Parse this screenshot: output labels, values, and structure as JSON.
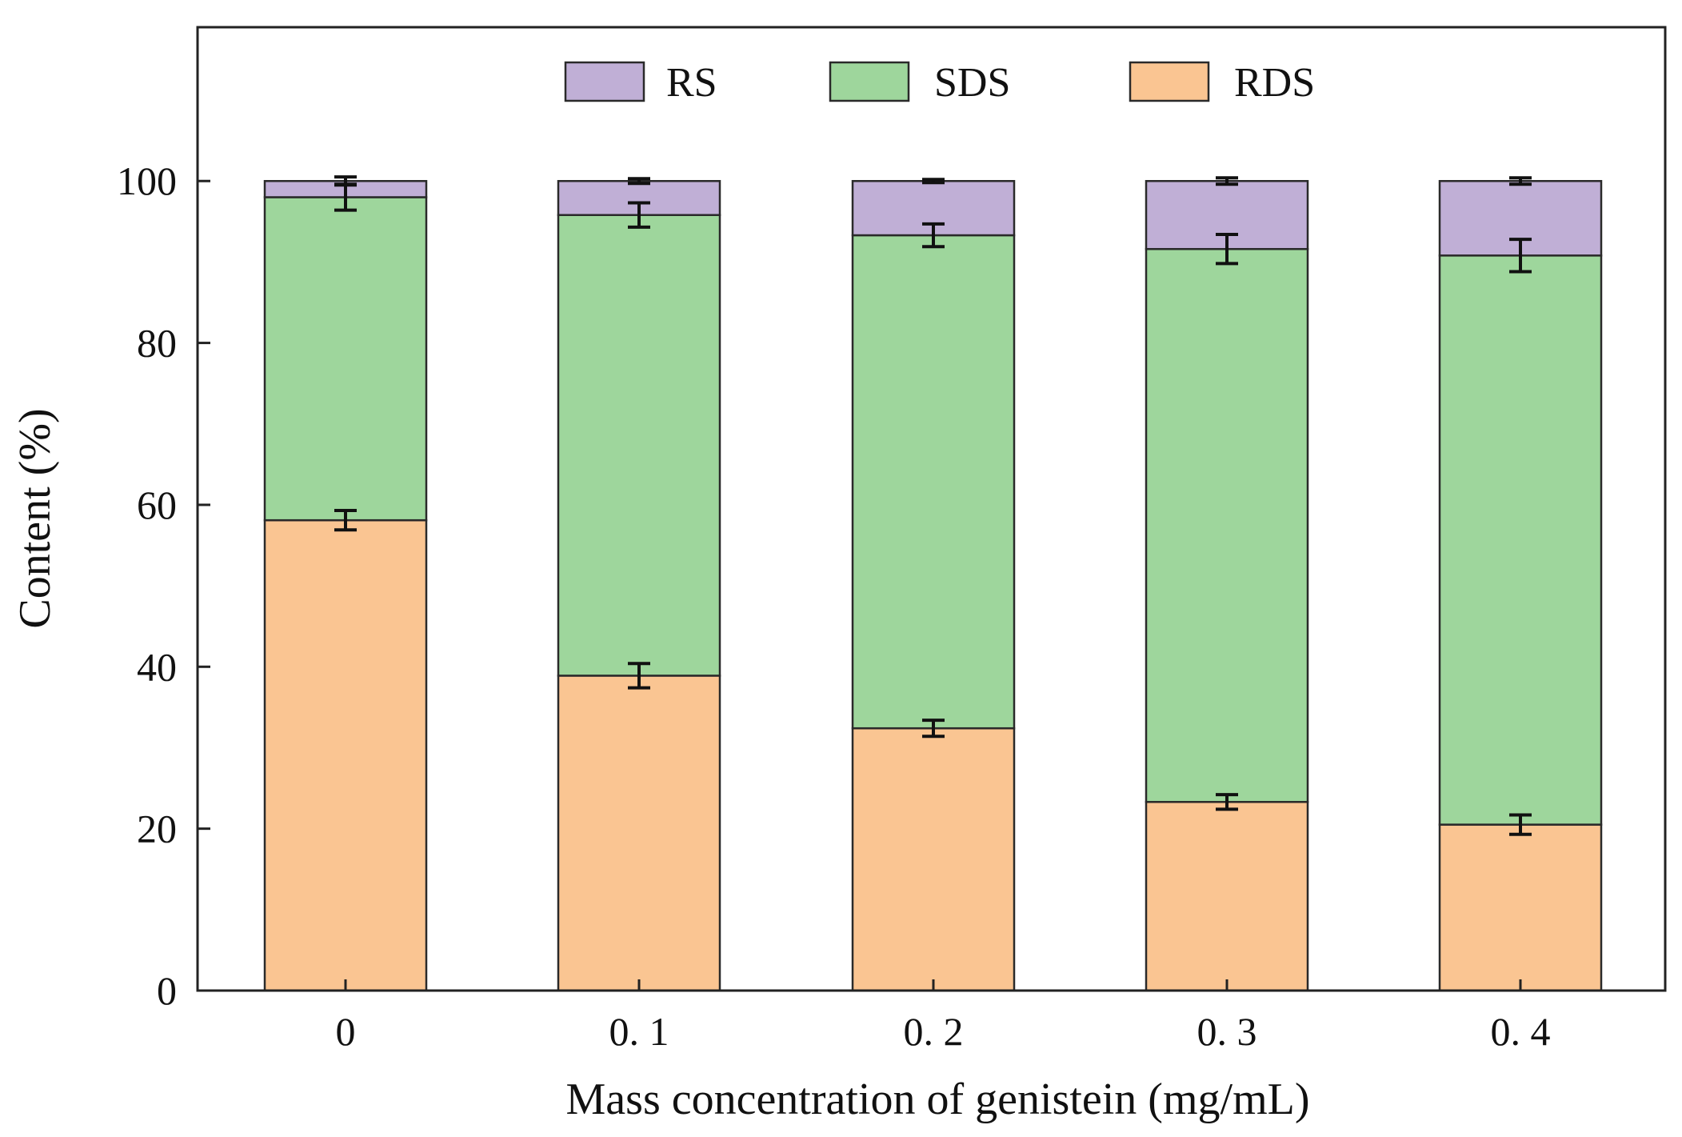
{
  "chart_data": {
    "type": "bar",
    "stacked": true,
    "categories": [
      "0",
      "0. 1",
      "0. 2",
      "0. 3",
      "0. 4"
    ],
    "series": [
      {
        "name": "RDS",
        "values": [
          58.1,
          38.9,
          32.4,
          23.3,
          20.5
        ],
        "errors": [
          1.2,
          1.5,
          1.0,
          0.9,
          1.2
        ],
        "color": "#FAC592"
      },
      {
        "name": "SDS",
        "values": [
          39.9,
          56.9,
          60.9,
          68.3,
          70.3
        ],
        "errors": [
          1.6,
          1.5,
          1.4,
          1.8,
          2.0
        ],
        "color": "#9ED69C"
      },
      {
        "name": "RS",
        "values": [
          2.0,
          4.2,
          6.7,
          8.4,
          9.2
        ],
        "errors": [
          0.5,
          0.3,
          0.2,
          0.4,
          0.4
        ],
        "color": "#C0AFD6"
      }
    ],
    "legend_order": [
      "RS",
      "SDS",
      "RDS"
    ],
    "legend_position": "top-center",
    "title": "",
    "xlabel": "Mass concentration of genistein (mg/mL)",
    "ylabel": "Content (%)",
    "ylim": [
      0,
      119
    ],
    "yticks": [
      0,
      20,
      40,
      60,
      80,
      100
    ],
    "grid": false,
    "edge_color": "#2a2a2a"
  }
}
